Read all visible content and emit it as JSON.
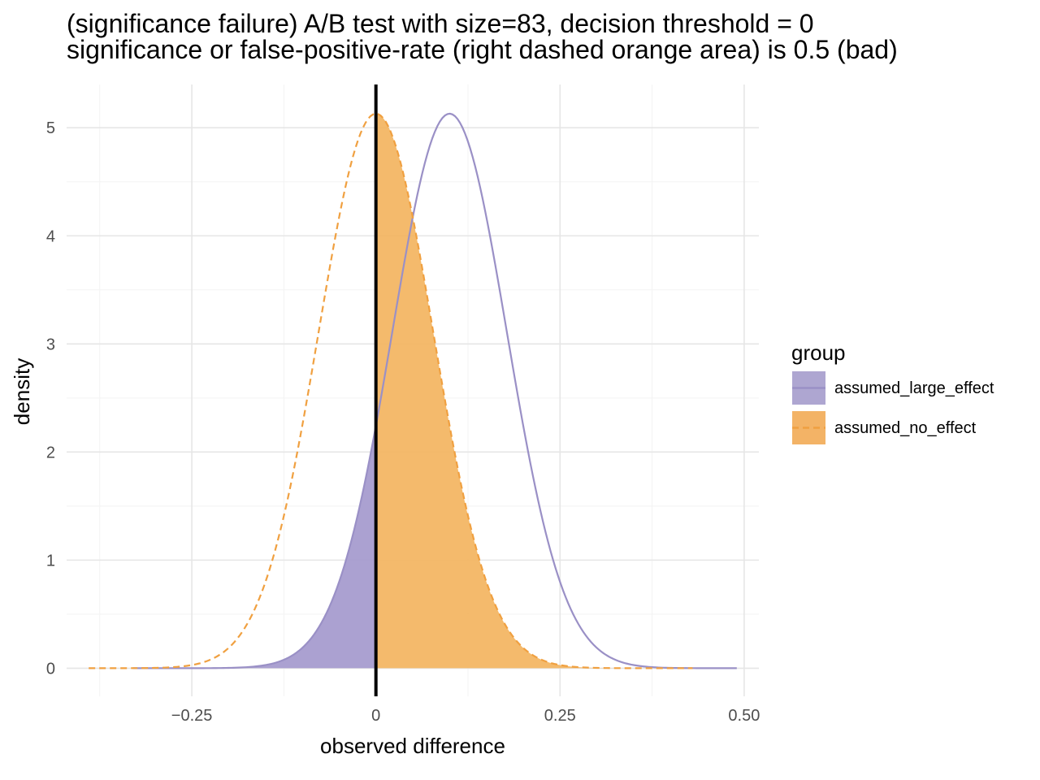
{
  "chart_data": {
    "type": "area",
    "title_line1": "(significance failure) A/B test with size=83, decision threshold = 0",
    "title_line2": "significance or false-positive-rate (right dashed orange area) is 0.5 (bad)",
    "xlabel": "observed difference",
    "ylabel": "density",
    "xlim": [
      -0.42,
      0.52
    ],
    "ylim": [
      -0.26,
      5.4
    ],
    "x_ticks": [
      -0.25,
      0,
      0.25,
      0.5
    ],
    "x_tick_labels": [
      "−0.25",
      "0",
      "0.25",
      "0.50"
    ],
    "y_ticks": [
      0,
      1,
      2,
      3,
      4,
      5
    ],
    "y_tick_labels": [
      "0",
      "1",
      "2",
      "3",
      "4",
      "5"
    ],
    "decision_threshold": 0,
    "grid": true,
    "legend": {
      "title": "group",
      "position": "right",
      "entries": [
        {
          "label": "assumed_large_effect",
          "color": "#9a90c6",
          "line": "solid"
        },
        {
          "label": "assumed_no_effect",
          "color": "#f0a040",
          "line": "dashed"
        }
      ]
    },
    "series": [
      {
        "name": "assumed_large_effect",
        "color": "#9a90c6",
        "fill_color": "#a79ccf",
        "line_style": "solid",
        "shaded_region": "x < 0",
        "x_range": [
          -0.33,
          0.49
        ],
        "peak_x": 0.1,
        "peak_density": 5.13,
        "points": [
          [
            -0.33,
            0.0
          ],
          [
            -0.3,
            0.0
          ],
          [
            -0.25,
            0.01
          ],
          [
            -0.2,
            0.03
          ],
          [
            -0.15,
            0.16
          ],
          [
            -0.1,
            0.53
          ],
          [
            -0.05,
            1.31
          ],
          [
            0.0,
            2.17
          ],
          [
            0.05,
            4.34
          ],
          [
            0.1,
            5.13
          ],
          [
            0.15,
            4.34
          ],
          [
            0.2,
            2.17
          ],
          [
            0.25,
            0.66
          ],
          [
            0.3,
            0.12
          ],
          [
            0.35,
            0.02
          ],
          [
            0.4,
            0.0
          ],
          [
            0.45,
            0.0
          ],
          [
            0.49,
            0.0
          ]
        ]
      },
      {
        "name": "assumed_no_effect",
        "color": "#f0a040",
        "fill_color": "#f3b45f",
        "line_style": "dashed",
        "shaded_region": "x > 0",
        "x_range": [
          -0.39,
          0.43
        ],
        "peak_x": 0.0,
        "peak_density": 5.13,
        "points": [
          [
            -0.39,
            0.0
          ],
          [
            -0.35,
            0.0
          ],
          [
            -0.3,
            0.01
          ],
          [
            -0.25,
            0.03
          ],
          [
            -0.2,
            0.18
          ],
          [
            -0.15,
            0.68
          ],
          [
            -0.1,
            2.17
          ],
          [
            -0.05,
            4.34
          ],
          [
            0.0,
            5.13
          ],
          [
            0.05,
            4.34
          ],
          [
            0.1,
            2.17
          ],
          [
            0.15,
            0.68
          ],
          [
            0.2,
            0.18
          ],
          [
            0.25,
            0.03
          ],
          [
            0.3,
            0.01
          ],
          [
            0.35,
            0.0
          ],
          [
            0.4,
            0.0
          ],
          [
            0.43,
            0.0
          ]
        ]
      }
    ]
  }
}
